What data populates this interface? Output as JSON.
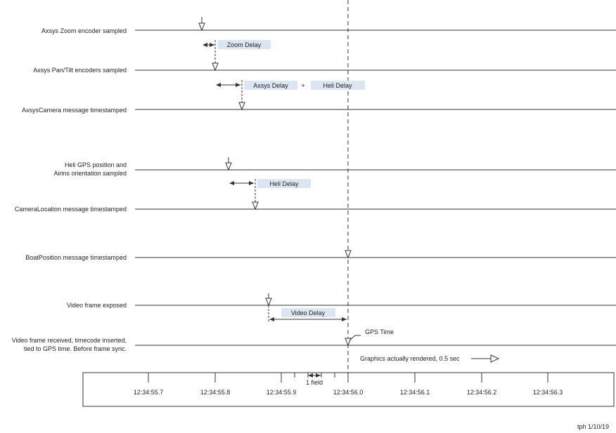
{
  "rows": [
    {
      "id": "zoom",
      "lines": [
        "Axsys Zoom encoder sampled"
      ]
    },
    {
      "id": "pan",
      "lines": [
        "Axsys Pan/Tilt encoders sampled"
      ]
    },
    {
      "id": "axsys-msg",
      "lines": [
        "AxsysCamera message timestamped"
      ]
    },
    {
      "id": "heli-gps",
      "lines": [
        "Heli GPS position and",
        "Airins orientation sampled"
      ]
    },
    {
      "id": "camloc",
      "lines": [
        "CameraLocation message timestamped"
      ]
    },
    {
      "id": "boat",
      "lines": [
        "BoatPosition message timestamped"
      ]
    },
    {
      "id": "video-exp",
      "lines": [
        "Video frame exposed"
      ]
    },
    {
      "id": "video-recv",
      "lines": [
        "Video frame received, timecode inserted,",
        "tied to GPS time.  Before frame sync."
      ]
    }
  ],
  "delays": {
    "zoom_delay": "Zoom Delay",
    "axsys_delay": "Axsys Delay",
    "plus": "+",
    "heli_delay_1": "Heli Delay",
    "heli_delay_2": "Heli Delay",
    "video_delay": "Video Delay"
  },
  "gps_time": "GPS Time",
  "graphics_note": "Graphics actually rendered, 0.5 sec",
  "one_field": "1 field",
  "timeline_ticks": [
    "12:34:55.7",
    "12:34:55.8",
    "12:34:55.9",
    "12:34:56.0",
    "12:34:56.1",
    "12:34:56.2",
    "12:34:56.3"
  ],
  "footer": "tph 1/10/19",
  "colors": {
    "box_fill": "#dce6f2",
    "line": "#333333",
    "text": "#222222"
  }
}
